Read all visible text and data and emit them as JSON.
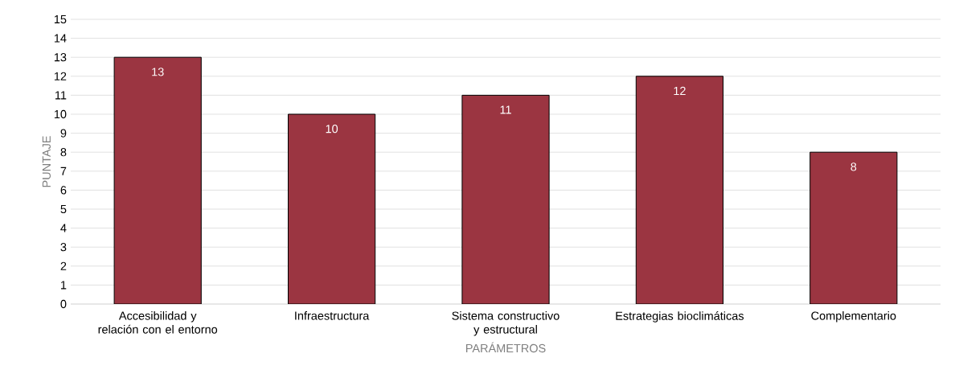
{
  "chart_data": {
    "type": "bar",
    "xlabel": "PARÁMETROS",
    "ylabel": "PUNTAJE",
    "categories": [
      "Accesibilidad y relación con el entorno",
      "Infraestructura",
      "Sistema constructivo y estructural",
      "Estrategias bioclimáticas",
      "Complementario"
    ],
    "values": [
      13,
      10,
      11,
      12,
      8
    ],
    "color": "#9b3541",
    "ylim": [
      0,
      15
    ],
    "yticks": [
      0,
      1,
      2,
      3,
      4,
      5,
      6,
      7,
      8,
      9,
      10,
      11,
      12,
      13,
      14,
      15
    ],
    "grid": "y",
    "data_labels": true
  }
}
